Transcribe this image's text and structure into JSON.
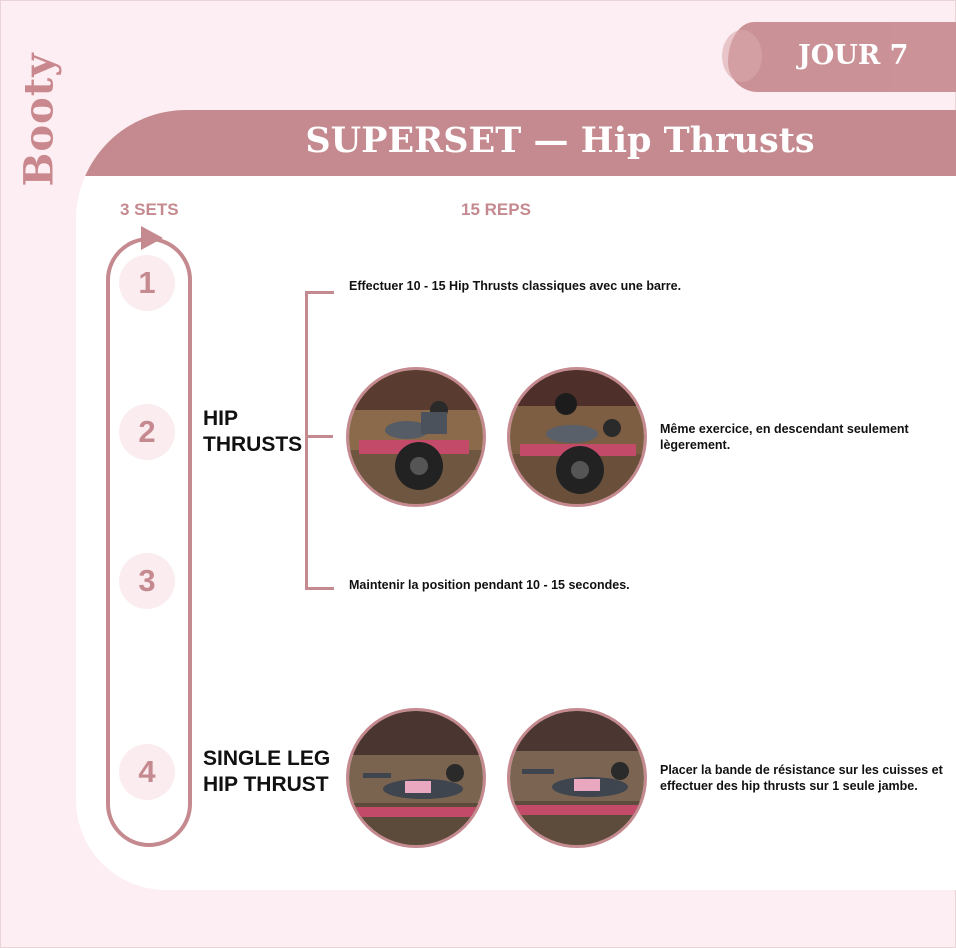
{
  "side_title": "Booty",
  "day": "JOUR 7",
  "title": "SUPERSET — Hip Thrusts",
  "sets": "3 SETS",
  "reps": "15 REPS",
  "steps": [
    "1",
    "2",
    "3",
    "4"
  ],
  "exercises": [
    {
      "name_line1": "HIP",
      "name_line2": "THRUSTS"
    },
    {
      "name_line1": "SINGLE LEG",
      "name_line2": "HIP THRUST"
    }
  ],
  "notes": {
    "top": "Effectuer 10 - 15 Hip Thrusts classiques avec une barre.",
    "middle": "Même exercice, en descendant seulement lègerement.",
    "bottom": "Maintenir la position pendant 10 - 15 secondes.",
    "single_leg": "Placer la bande de résistance sur les cuisses et effectuer des hip thrusts sur 1 seule jambe."
  },
  "colors": {
    "accent": "#c58a8f",
    "background": "#fceef2",
    "card": "#ffffff"
  }
}
